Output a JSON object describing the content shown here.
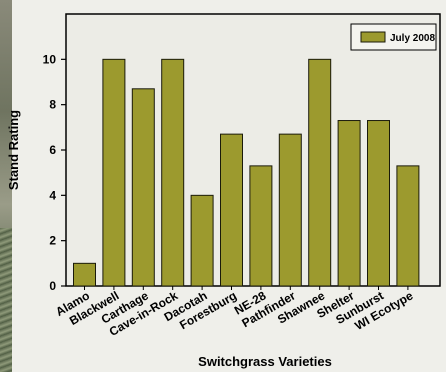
{
  "chart_data": {
    "type": "bar",
    "categories": [
      "Alamo",
      "Blackwell",
      "Carthage",
      "Cave-in-Rock",
      "Dacotah",
      "Forestburg",
      "NE-28",
      "Pathfinder",
      "Shawnee",
      "Shelter",
      "Sunburst",
      "WI Ecotype"
    ],
    "series": [
      {
        "name": "July 2008",
        "values": [
          1,
          10,
          8.7,
          10,
          4,
          6.7,
          5.3,
          6.7,
          10,
          7.3,
          7.3,
          5.3
        ],
        "color": "#9c9a2e"
      }
    ],
    "xlabel": "Switchgrass Varieties",
    "ylabel": "Stand Rating",
    "ylim": [
      0,
      12
    ],
    "yticks": [
      "0",
      "2",
      "4",
      "6",
      "8",
      "10"
    ],
    "legend_position": "top-right",
    "grid": false
  },
  "colors": {
    "bar_fill": "#9c9a2e",
    "bar_stroke": "#1a1a0a",
    "plot_background": "#ecece6"
  }
}
